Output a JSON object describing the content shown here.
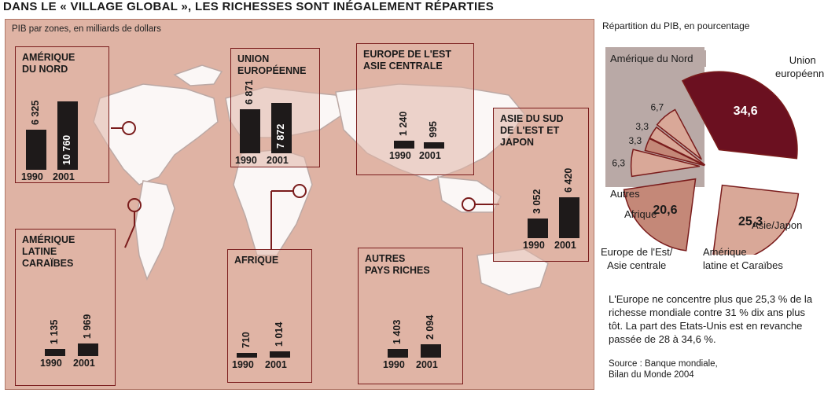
{
  "title": "DANS LE « VILLAGE GLOBAL », LES RICHESSES SONT INÉGALEMENT RÉPARTIES",
  "map_subtitle": "PIB par zones, en milliards de dollars",
  "pie_subtitle": "Répartition du PIB, en pourcentage",
  "colors": {
    "map_bg": "#dfb3a4",
    "bar": "#1e1a1a",
    "zone_border": "#7a1c1c",
    "na_slice": "#6b1020",
    "light_slice": "#d9a898",
    "mid_slice": "#c48878",
    "north_america_box": "#b9a9a6"
  },
  "chart_data": [
    {
      "type": "bar",
      "zones": [
        {
          "name": "AMÉRIQUE\nDU NORD",
          "categories": [
            "1990",
            "2001"
          ],
          "values": [
            6325,
            10760
          ],
          "labels": [
            "6 325",
            "10 760"
          ]
        },
        {
          "name": "UNION\nEUROPÉENNE",
          "categories": [
            "1990",
            "2001"
          ],
          "values": [
            6871,
            7872
          ],
          "labels": [
            "6 871",
            "7 872"
          ]
        },
        {
          "name": "EUROPE DE L'EST\nASIE CENTRALE",
          "categories": [
            "1990",
            "2001"
          ],
          "values": [
            1240,
            995
          ],
          "labels": [
            "1 240",
            "995"
          ]
        },
        {
          "name": "ASIE DU SUD\nDE L'EST ET\nJAPON",
          "categories": [
            "1990",
            "2001"
          ],
          "values": [
            3052,
            6420
          ],
          "labels": [
            "3 052",
            "6 420"
          ]
        },
        {
          "name": "AMÉRIQUE\nLATINE\nCARAÏBES",
          "categories": [
            "1990",
            "2001"
          ],
          "values": [
            1135,
            1969
          ],
          "labels": [
            "1 135",
            "1 969"
          ]
        },
        {
          "name": "AFRIQUE",
          "categories": [
            "1990",
            "2001"
          ],
          "values": [
            710,
            1014
          ],
          "labels": [
            "710",
            "1 014"
          ]
        },
        {
          "name": "AUTRES\nPAYS RICHES",
          "categories": [
            "1990",
            "2001"
          ],
          "values": [
            1403,
            2094
          ],
          "labels": [
            "1 403",
            "2 094"
          ]
        }
      ]
    },
    {
      "type": "pie",
      "slices": [
        {
          "name": "Amérique du Nord",
          "value": 34.6,
          "label": "34,6"
        },
        {
          "name": "Union\neuropéenne",
          "value": 25.3,
          "label": "25,3"
        },
        {
          "name": "Asie/Japon",
          "value": 20.6,
          "label": "20,6"
        },
        {
          "name": "Amérique\nlatine et Caraïbes",
          "value": 6.3,
          "label": "6,3"
        },
        {
          "name": "Europe de l'Est/\nAsie centrale",
          "value": 3.3,
          "label": "3,3"
        },
        {
          "name": "Afrique",
          "value": 3.3,
          "label": "3,3"
        },
        {
          "name": "Autres",
          "value": 6.7,
          "label": "6,7"
        }
      ]
    }
  ],
  "note": "L'Europe ne concentre plus que 25,3 % de la richesse mondiale contre 31 % dix ans plus tôt. La part des Etats-Unis est en revanche passée de 28 à 34,6 %.",
  "source": "Source : Banque mondiale,\nBilan du Monde 2004"
}
